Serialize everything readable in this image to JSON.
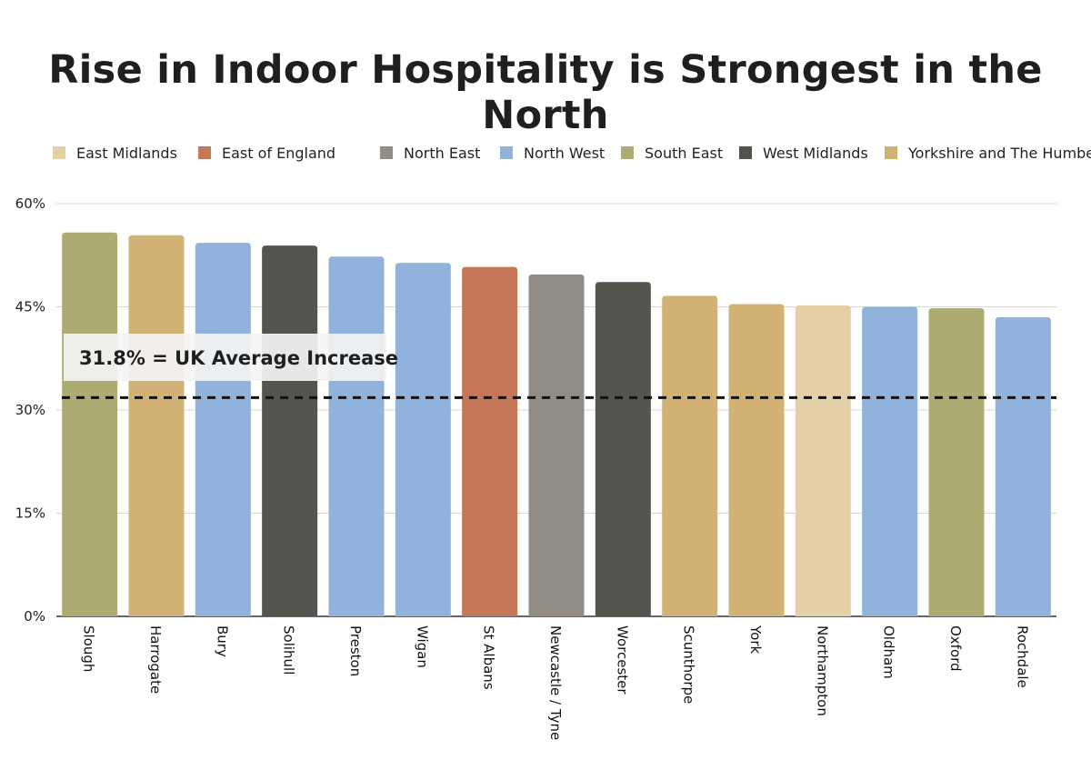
{
  "chart_data": {
    "type": "bar",
    "title": "Rise in Indoor Hospitality is Strongest in the North",
    "xlabel": "",
    "ylabel": "",
    "ylim": [
      0,
      60
    ],
    "yticks": [
      0,
      15,
      30,
      45,
      60
    ],
    "ytick_labels": [
      "0%",
      "15%",
      "30%",
      "45%",
      "60%"
    ],
    "grid": true,
    "legend_position": "top",
    "legend": [
      {
        "name": "East Midlands",
        "color": "#e5cfa6"
      },
      {
        "name": "East of England",
        "color": "#c57757"
      },
      {
        "name": "North East",
        "color": "#928d84"
      },
      {
        "name": "North West",
        "color": "#90b2db"
      },
      {
        "name": "South East",
        "color": "#abab72"
      },
      {
        "name": "West Midlands",
        "color": "#55544e"
      },
      {
        "name": "Yorkshire and The Humber",
        "color": "#d2b274"
      }
    ],
    "categories": [
      "Slough",
      "Harrogate",
      "Bury",
      "Solihull",
      "Preston",
      "Wigan",
      "St Albans",
      "Newcastle / Tyne",
      "Worcester",
      "Scunthorpe",
      "York",
      "Northampton",
      "Oldham",
      "Oxford",
      "Rochdale"
    ],
    "values": [
      55.8,
      55.4,
      54.3,
      53.9,
      52.3,
      51.4,
      50.8,
      49.7,
      48.6,
      46.6,
      45.4,
      45.2,
      45.0,
      44.8,
      43.5
    ],
    "bar_regions": [
      "South East",
      "Yorkshire and The Humber",
      "North West",
      "West Midlands",
      "North West",
      "North West",
      "East of England",
      "North East",
      "West Midlands",
      "Yorkshire and The Humber",
      "Yorkshire and The Humber",
      "East Midlands",
      "North West",
      "South East",
      "North West"
    ],
    "reference_line": {
      "value": 31.8,
      "style": "dashed",
      "color": "#111111",
      "label": "31.8% = UK Average Increase"
    }
  }
}
